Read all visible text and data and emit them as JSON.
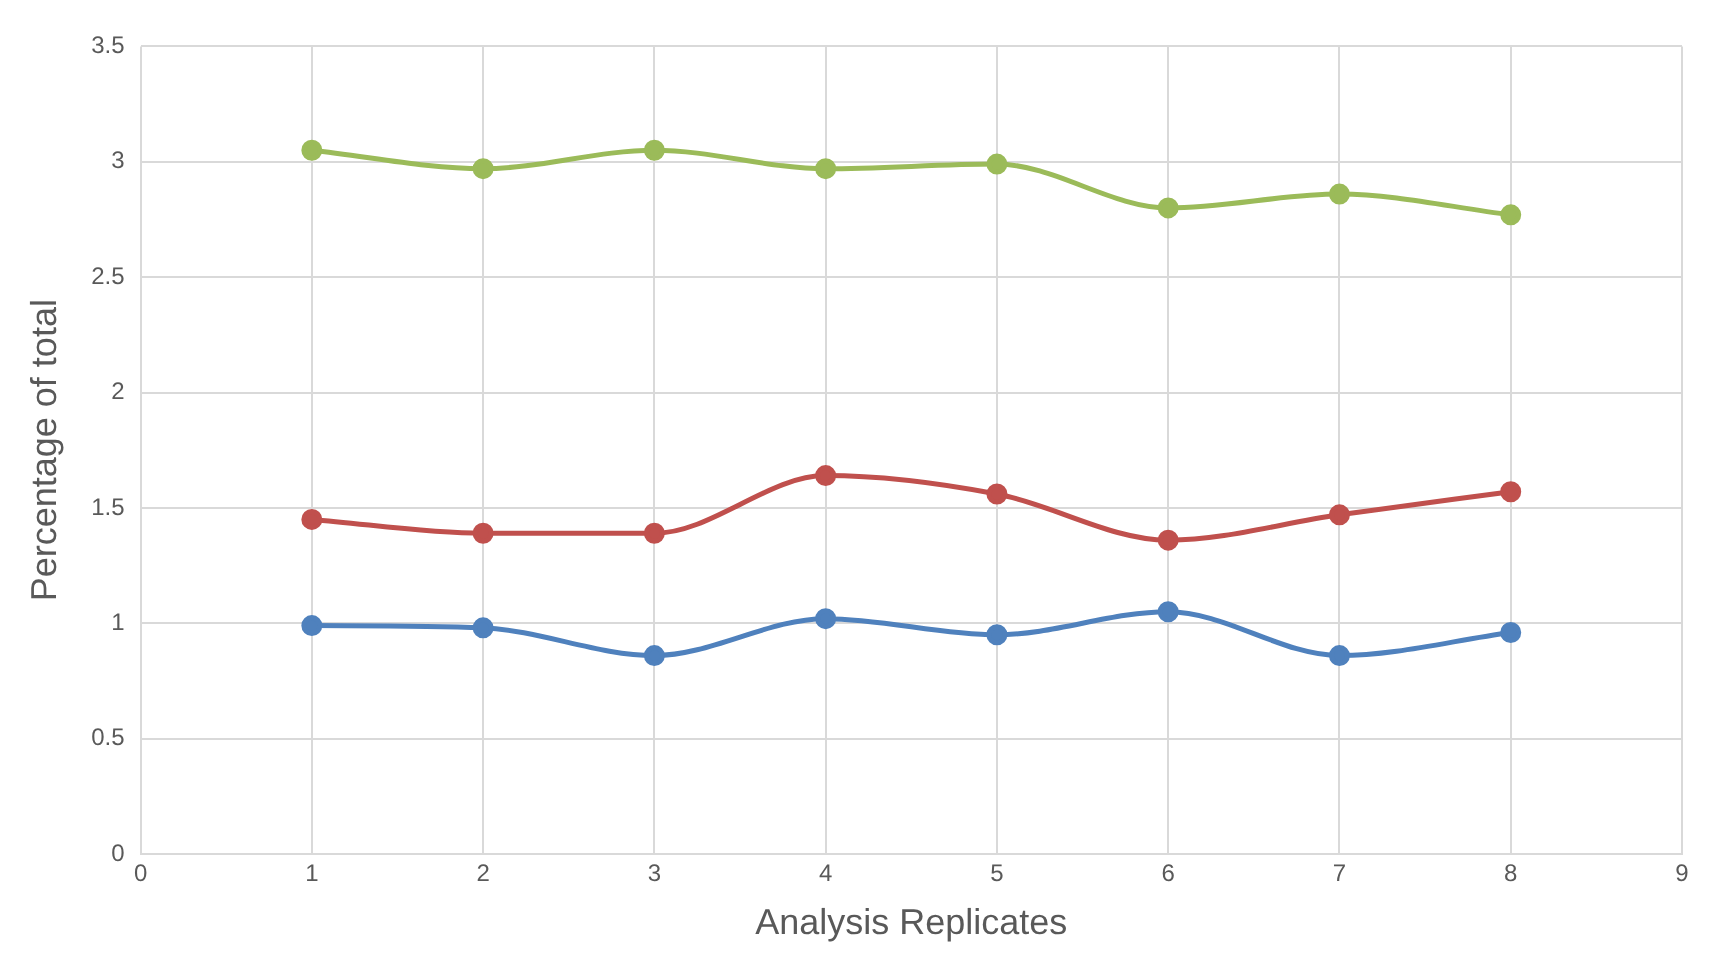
{
  "chart_data": {
    "type": "line",
    "xlabel": "Analysis Replicates",
    "ylabel": "Percentage of total",
    "x": [
      1,
      2,
      3,
      4,
      5,
      6,
      7,
      8
    ],
    "series": [
      {
        "color": "#4f81bd",
        "values": [
          0.99,
          0.98,
          0.86,
          1.02,
          0.95,
          1.05,
          0.86,
          0.96
        ]
      },
      {
        "color": "#c0504d",
        "values": [
          1.45,
          1.39,
          1.39,
          1.64,
          1.56,
          1.36,
          1.47,
          1.57
        ]
      },
      {
        "color": "#9bbb59",
        "values": [
          3.05,
          2.97,
          3.05,
          2.97,
          2.99,
          2.8,
          2.86,
          2.77
        ]
      }
    ],
    "xlim": [
      0,
      9
    ],
    "xticks": [
      0,
      1,
      2,
      3,
      4,
      5,
      6,
      7,
      8,
      9
    ],
    "ylim": [
      0,
      3.5
    ],
    "yticks": [
      0,
      0.5,
      1,
      1.5,
      2,
      2.5,
      3,
      3.5
    ],
    "grid": true,
    "legend": false,
    "marker": "circle",
    "line_style": "solid"
  }
}
